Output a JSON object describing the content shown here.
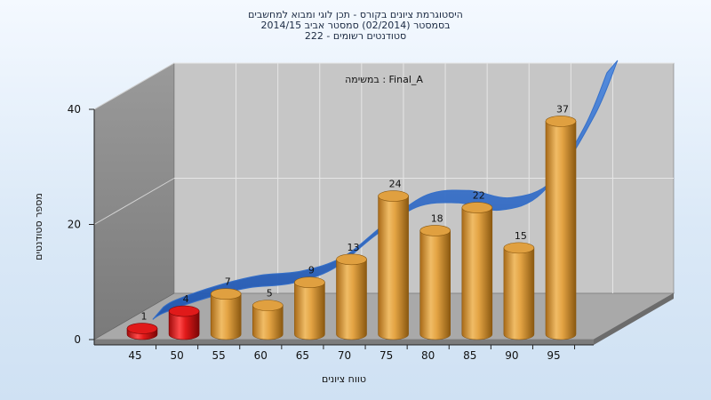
{
  "titles": {
    "line1": "היסטוגרמת ציונים בקורס - תכן לוגי ומבוא למחשבים",
    "line2": "בסמסטר  (02/2014)  סמסטר אביב 2014/15",
    "line3": "סטודנטים רשומים - 222"
  },
  "colors": {
    "bar_fail": "#e01a1a",
    "bar_pass": "#e0a040",
    "curve": "#2f6cc9",
    "back_wall": "#c5c5c5",
    "side_wall": "#8a8a8a",
    "floor": "#a8a8a8"
  },
  "chart_data": {
    "type": "bar",
    "title": "היסטוגרמת ציונים בקורס - תכן לוגי ומבוא למחשבים",
    "subtitle": "Final_A : במשימה",
    "xlabel": "טווח ציונים",
    "ylabel": "מספר סטודנטים",
    "categories": [
      "45",
      "50",
      "55",
      "60",
      "65",
      "70",
      "75",
      "80",
      "85",
      "90",
      "95"
    ],
    "values": [
      1,
      4,
      7,
      5,
      9,
      13,
      24,
      18,
      22,
      15,
      37
    ],
    "fail_categories": [
      "45",
      "50"
    ],
    "ylim": [
      0,
      40
    ],
    "yticks": [
      0,
      20,
      40
    ],
    "grid": true,
    "style": "3d-cylinder",
    "overlay_curve": true
  }
}
